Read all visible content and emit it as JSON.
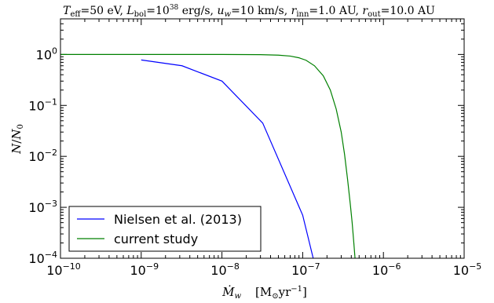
{
  "chart_data": {
    "type": "line",
    "title_parts": [
      "T",
      "eff",
      "=50 eV, ",
      "L",
      "bol",
      "=10",
      "38",
      " erg/s, ",
      "u",
      "w",
      "=10 km/s, ",
      "r",
      "inn",
      "=1.0 AU, ",
      "r",
      "out",
      "=10.0 AU"
    ],
    "ylabel_parts": [
      "N",
      "/",
      "N",
      "0"
    ],
    "xlabel_parts": [
      "Ṁ",
      "w",
      "[M",
      "⊙",
      "yr",
      "−1",
      "]"
    ],
    "x_scale": "log",
    "y_scale": "log",
    "xlim": [
      1e-10,
      1e-05
    ],
    "ylim": [
      0.0001,
      5
    ],
    "x_ticks": [
      {
        "value": 1e-10,
        "base": "10",
        "exp": "-10"
      },
      {
        "value": 1e-09,
        "base": "10",
        "exp": "-9"
      },
      {
        "value": 1e-08,
        "base": "10",
        "exp": "-8"
      },
      {
        "value": 1e-07,
        "base": "10",
        "exp": "-7"
      },
      {
        "value": 1e-06,
        "base": "10",
        "exp": "-6"
      },
      {
        "value": 1e-05,
        "base": "10",
        "exp": "-5"
      }
    ],
    "y_ticks": [
      {
        "value": 0.0001,
        "base": "10",
        "exp": "-4"
      },
      {
        "value": 0.001,
        "base": "10",
        "exp": "-3"
      },
      {
        "value": 0.01,
        "base": "10",
        "exp": "-2"
      },
      {
        "value": 0.1,
        "base": "10",
        "exp": "-1"
      },
      {
        "value": 1,
        "base": "10",
        "exp": "0"
      }
    ],
    "legend_position": "lower-left",
    "series": [
      {
        "name": "Nielsen et al. (2013)",
        "color": "#0000ff",
        "x": [
          1e-09,
          3.2e-09,
          1e-08,
          3.2e-08,
          1e-07,
          1.35e-07
        ],
        "y": [
          0.78,
          0.6,
          0.3,
          0.045,
          0.0007,
          0.0001
        ]
      },
      {
        "name": "current study",
        "color": "#008000",
        "x": [
          1e-10,
          1e-09,
          1e-08,
          3e-08,
          5e-08,
          7e-08,
          9e-08,
          1.1e-07,
          1.4e-07,
          1.8e-07,
          2.2e-07,
          2.6e-07,
          3e-07,
          3.3e-07,
          3.6e-07,
          3.9e-07,
          4.1e-07,
          4.3e-07,
          4.45e-07
        ],
        "y": [
          1.0,
          1.0,
          1.0,
          0.99,
          0.97,
          0.93,
          0.86,
          0.77,
          0.6,
          0.38,
          0.2,
          0.085,
          0.03,
          0.011,
          0.0035,
          0.0011,
          0.0005,
          0.0002,
          0.0001
        ]
      }
    ]
  }
}
